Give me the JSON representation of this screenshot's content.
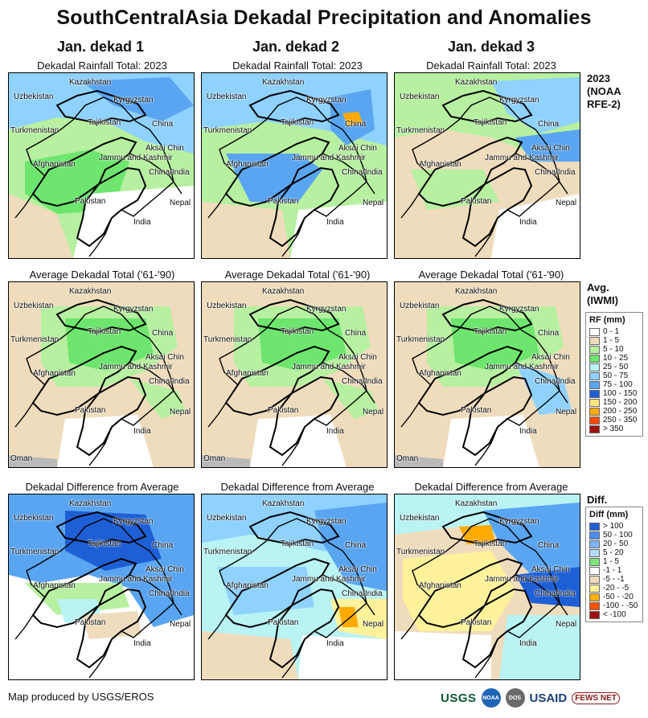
{
  "title": "SouthCentralAsia Dekadal Precipitation and Anomalies",
  "columns": [
    "Jan. dekad 1",
    "Jan. dekad 2",
    "Jan. dekad 3"
  ],
  "row_labels": {
    "rainfall": "Dekadal Rainfall Total: 2023",
    "average": "Average Dekadal Total ('61-'90)",
    "difference": "Dekadal Difference from Average"
  },
  "side_titles": {
    "rainfall": [
      "2023",
      "(NOAA",
      "RFE-2)"
    ],
    "average": [
      "Avg.",
      "(IWMI)"
    ],
    "difference": [
      "Diff."
    ]
  },
  "places": {
    "kazakhstan": "Kazakhstan",
    "uzbekistan": "Uzbekistan",
    "kyrgyzstan": "Kyrgyzstan",
    "turkmenistan": "Turkmenistan",
    "tajikistan": "Tajikistan",
    "china": "China",
    "aksai_chin": "Aksai Chin",
    "jammu_kashmir": "Jammu and Kashmir",
    "china_india": "China/India",
    "afghanistan": "Afghanistan",
    "pakistan": "Pakistan",
    "nepal": "Nepal",
    "india": "India",
    "oman": "Oman"
  },
  "rf_legend": {
    "title": "RF (mm)",
    "items": [
      {
        "label": "0 - 1",
        "color": "#ffffff"
      },
      {
        "label": "1 - 5",
        "color": "#efdcbc"
      },
      {
        "label": "5 - 10",
        "color": "#b6f0a0"
      },
      {
        "label": "10 - 25",
        "color": "#6ee56e"
      },
      {
        "label": "25 - 50",
        "color": "#b9f3f3"
      },
      {
        "label": "50 - 75",
        "color": "#8fd1ff"
      },
      {
        "label": "75 - 100",
        "color": "#5aa5f2"
      },
      {
        "label": "100 - 150",
        "color": "#1f5fd6"
      },
      {
        "label": "150 - 200",
        "color": "#ffe780"
      },
      {
        "label": "200 - 250",
        "color": "#ffaa00"
      },
      {
        "label": "250 - 350",
        "color": "#ff4a00"
      },
      {
        "label": "> 350",
        "color": "#a01010"
      }
    ]
  },
  "diff_legend": {
    "title": "Diff (mm)",
    "items": [
      {
        "label": "> 100",
        "color": "#1f5fd6"
      },
      {
        "label": "50 - 100",
        "color": "#4f8df0"
      },
      {
        "label": "20 - 50",
        "color": "#7fb4f5"
      },
      {
        "label": "5 - 20",
        "color": "#b3dcfb"
      },
      {
        "label": "1 - 5",
        "color": "#7de37d"
      },
      {
        "label": "-1 - 1",
        "color": "#ffffff"
      },
      {
        "label": "-5 - -1",
        "color": "#efdcbc"
      },
      {
        "label": "-20 - -5",
        "color": "#fff29a"
      },
      {
        "label": "-50 - -20",
        "color": "#ffb000"
      },
      {
        "label": "-100 - -50",
        "color": "#ff5000"
      },
      {
        "label": "< -100",
        "color": "#a01010"
      }
    ]
  },
  "colors": {
    "land_white": "#ffffff",
    "tan": "#efdcbc",
    "light_green": "#b6f0a0",
    "green": "#6ee56e",
    "cyan": "#b9f3f3",
    "light_blue": "#8fd1ff",
    "blue": "#5aa5f2",
    "dark_blue": "#1f5fd6",
    "yellow": "#fff29a",
    "orange": "#ffaa00",
    "sea_gray": "#b9b9b9"
  },
  "credit": "Map produced by USGS/EROS",
  "logos": {
    "usgs": "USGS",
    "noaa": "NOAA",
    "dos": "DOS",
    "usaid": "USAID",
    "fews": "FEWS NET"
  }
}
